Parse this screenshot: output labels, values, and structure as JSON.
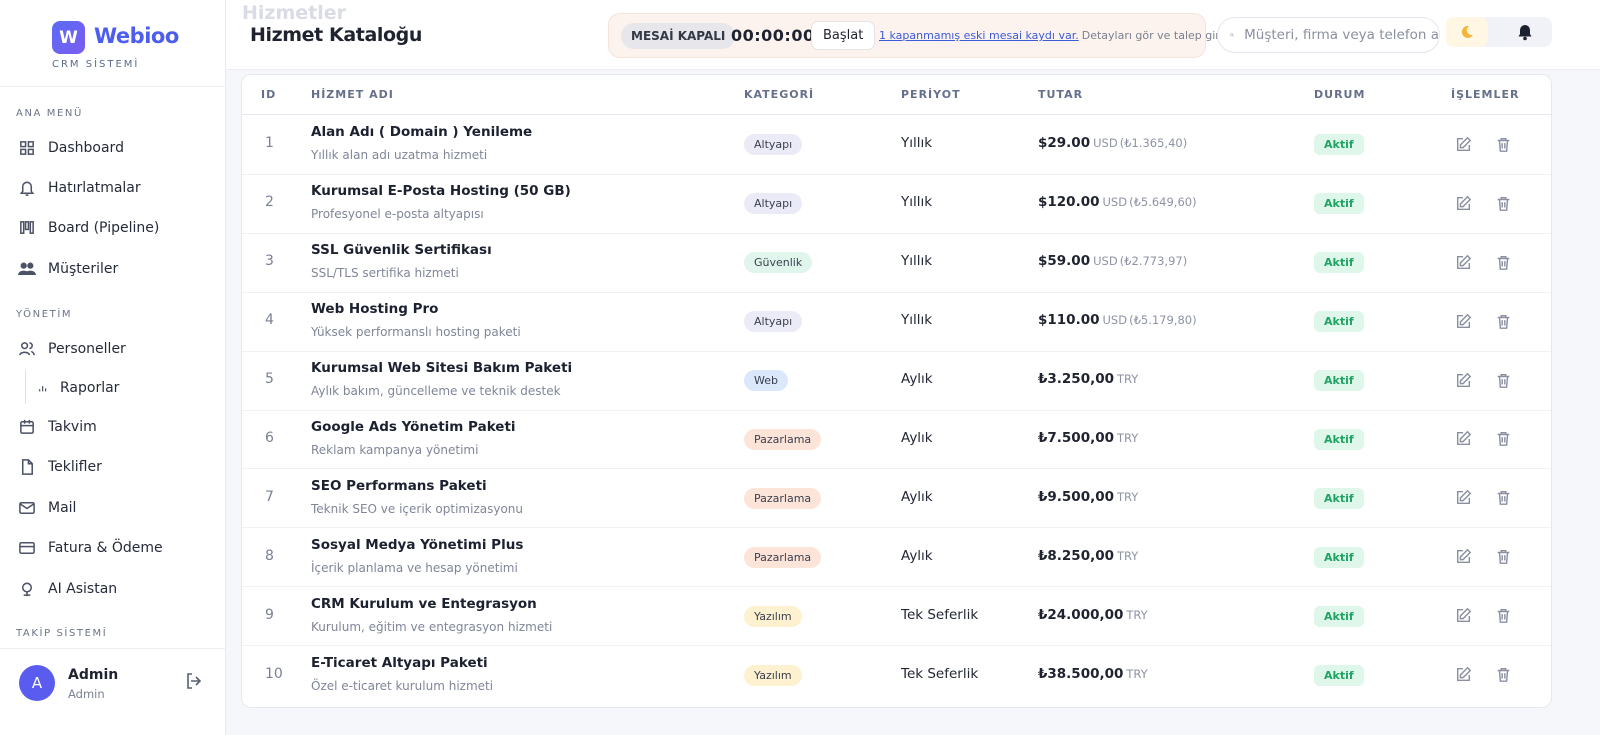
{
  "sidebar": {
    "logo_letter": "W",
    "brand": "Webioo",
    "subtitle": "CRM SİSTEMİ",
    "sections": [
      {
        "title": "ANA MENÜ",
        "items": [
          "Dashboard",
          "Hatırlatmalar",
          "Board (Pipeline)",
          "Müşteriler"
        ]
      },
      {
        "title": "YÖNETİM",
        "items": [
          "Personeller",
          "Raporlar",
          "Takvim",
          "Teklifler",
          "Mail",
          "Fatura & Ödeme",
          "AI Asistan"
        ]
      },
      {
        "title": "TAKİP SİSTEMİ",
        "items": []
      }
    ],
    "user": {
      "initial": "A",
      "name": "Admin",
      "role": "Admin"
    }
  },
  "header": {
    "breadcrumb": "Hizmetler",
    "title": "Hizmet Kataloğu",
    "shift_status": "MESAİ KAPALI",
    "timer": "00:00:00",
    "start_button": "Başlat",
    "notice_link": "1 kapanmamış eski mesai kaydı var.",
    "notice_text": "Detayları gör ve talep gir.",
    "search_placeholder": "Müşteri, firma veya telefon a"
  },
  "table": {
    "columns": [
      "ID",
      "HİZMET ADI",
      "KATEGORİ",
      "PERİYOT",
      "TUTAR",
      "DURUM",
      "İŞLEMLER"
    ],
    "rows": [
      {
        "id": 1,
        "name": "Alan Adı ( Domain ) Yenileme",
        "description": "Yıllık alan adı uzatma hizmeti",
        "category": "Altyapı",
        "category_color": "#ebebf7",
        "period": "Yıllık",
        "amount": "$29.00",
        "currency": "USD",
        "converted": "(₺1.365,40)",
        "status": "Aktif"
      },
      {
        "id": 2,
        "name": "Kurumsal E-Posta Hosting (50 GB)",
        "description": "Profesyonel e-posta altyapısı",
        "category": "Altyapı",
        "category_color": "#ebebf7",
        "period": "Yıllık",
        "amount": "$120.00",
        "currency": "USD",
        "converted": "(₺5.649,60)",
        "status": "Aktif"
      },
      {
        "id": 3,
        "name": "SSL Güvenlik Sertifikası",
        "description": "SSL/TLS sertifika hizmeti",
        "category": "Güvenlik",
        "category_color": "#e0f5ec",
        "period": "Yıllık",
        "amount": "$59.00",
        "currency": "USD",
        "converted": "(₺2.773,97)",
        "status": "Aktif"
      },
      {
        "id": 4,
        "name": "Web Hosting Pro",
        "description": "Yüksek performanslı hosting paketi",
        "category": "Altyapı",
        "category_color": "#ebebf7",
        "period": "Yıllık",
        "amount": "$110.00",
        "currency": "USD",
        "converted": "(₺5.179,80)",
        "status": "Aktif"
      },
      {
        "id": 5,
        "name": "Kurumsal Web Sitesi Bakım Paketi",
        "description": "Aylık bakım, güncelleme ve teknik destek",
        "category": "Web",
        "category_color": "#dbe8fb",
        "period": "Aylık",
        "amount": "₺3.250,00",
        "currency": "TRY",
        "converted": null,
        "status": "Aktif"
      },
      {
        "id": 6,
        "name": "Google Ads Yönetim Paketi",
        "description": "Reklam kampanya yönetimi",
        "category": "Pazarlama",
        "category_color": "#fde4d8",
        "period": "Aylık",
        "amount": "₺7.500,00",
        "currency": "TRY",
        "converted": null,
        "status": "Aktif"
      },
      {
        "id": 7,
        "name": "SEO Performans Paketi",
        "description": "Teknik SEO ve içerik optimizasyonu",
        "category": "Pazarlama",
        "category_color": "#fde4d8",
        "period": "Aylık",
        "amount": "₺9.500,00",
        "currency": "TRY",
        "converted": null,
        "status": "Aktif"
      },
      {
        "id": 8,
        "name": "Sosyal Medya Yönetimi Plus",
        "description": "İçerik planlama ve hesap yönetimi",
        "category": "Pazarlama",
        "category_color": "#fde4d8",
        "period": "Aylık",
        "amount": "₺8.250,00",
        "currency": "TRY",
        "converted": null,
        "status": "Aktif"
      },
      {
        "id": 9,
        "name": "CRM Kurulum ve Entegrasyon",
        "description": "Kurulum, eğitim ve entegrasyon hizmeti",
        "category": "Yazılım",
        "category_color": "#fdf1cf",
        "period": "Tek Seferlik",
        "amount": "₺24.000,00",
        "currency": "TRY",
        "converted": null,
        "status": "Aktif"
      },
      {
        "id": 10,
        "name": "E-Ticaret Altyapı Paketi",
        "description": "Özel e-ticaret kurulum hizmeti",
        "category": "Yazılım",
        "category_color": "#fdf1cf",
        "period": "Tek Seferlik",
        "amount": "₺38.500,00",
        "currency": "TRY",
        "converted": null,
        "status": "Aktif"
      }
    ]
  }
}
